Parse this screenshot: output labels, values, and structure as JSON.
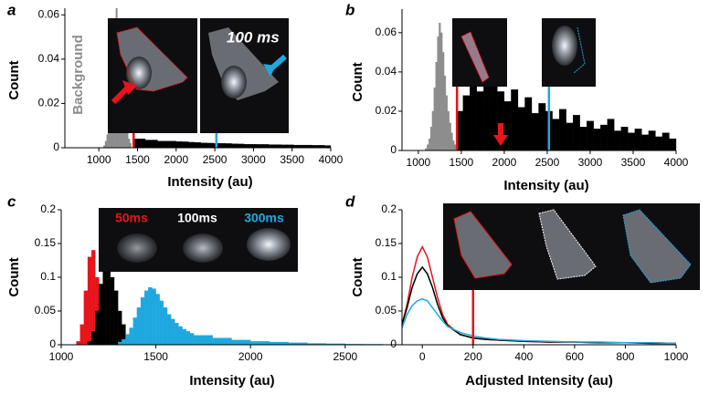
{
  "chart_data": [
    {
      "type": "histogram",
      "label": "a",
      "xlabel": "Intensity (au)",
      "ylabel": "Count",
      "xlim": [
        560,
        4000
      ],
      "ylim": [
        0,
        0.063
      ],
      "xticks": [
        1000,
        1500,
        2000,
        2500,
        3000,
        3500,
        4000
      ],
      "yticks": [
        0,
        0.02,
        0.04,
        0.06
      ],
      "annotations": [
        "Background",
        "100 ms"
      ],
      "series": [
        {
          "color": "#8c8c8c",
          "bins": [
            1060,
            1080,
            1100,
            1120,
            1140,
            1160,
            1180,
            1200,
            1220,
            1240,
            1260,
            1280,
            1300,
            1320,
            1340,
            1360,
            1380,
            1400,
            1420
          ],
          "values": [
            0.001,
            0.003,
            0.006,
            0.012,
            0.02,
            0.03,
            0.042,
            0.055,
            0.063,
            0.058,
            0.048,
            0.036,
            0.026,
            0.018,
            0.012,
            0.007,
            0.004,
            0.002
          ]
        },
        {
          "color": "#000000",
          "bins": [
            1440,
            1520,
            1600,
            1680,
            1760,
            1840,
            1920,
            2000,
            2080,
            2160,
            2240,
            2320,
            2400,
            2480,
            2560,
            2640,
            2720,
            2800,
            2880,
            2960,
            3040,
            3120,
            3200,
            3280,
            3360,
            3440,
            3520,
            3600,
            3680,
            3760,
            3840,
            3920,
            4000
          ],
          "values": [
            0.004,
            0.004,
            0.0035,
            0.0035,
            0.003,
            0.003,
            0.003,
            0.0028,
            0.0027,
            0.0025,
            0.0024,
            0.0022,
            0.0021,
            0.002,
            0.002,
            0.0019,
            0.0018,
            0.0017,
            0.0016,
            0.0016,
            0.0015,
            0.0015,
            0.0014,
            0.0014,
            0.0013,
            0.0013,
            0.0012,
            0.0012,
            0.0012,
            0.0011,
            0.0011,
            0.001
          ]
        }
      ],
      "vlines": [
        {
          "x": 1450,
          "color": "#e8141b"
        },
        {
          "x": 2520,
          "color": "#1fa8e0"
        }
      ]
    },
    {
      "type": "histogram",
      "label": "b",
      "xlabel": "Intensity (au)",
      "ylabel": "Count",
      "xlim": [
        810,
        4000
      ],
      "ylim": [
        0,
        0.072
      ],
      "xticks": [
        1000,
        1500,
        2000,
        2500,
        3000,
        3500,
        4000
      ],
      "yticks": [
        0,
        0.02,
        0.04,
        0.06
      ],
      "series": [
        {
          "color": "#8c8c8c",
          "bins": [
            1080,
            1100,
            1120,
            1140,
            1160,
            1180,
            1200,
            1220,
            1240,
            1260,
            1280,
            1300,
            1320,
            1340,
            1360,
            1380,
            1400,
            1420,
            1440
          ],
          "values": [
            0.001,
            0.003,
            0.006,
            0.012,
            0.02,
            0.032,
            0.045,
            0.058,
            0.065,
            0.06,
            0.05,
            0.038,
            0.028,
            0.02,
            0.014,
            0.009,
            0.005,
            0.003
          ]
        },
        {
          "color": "#000000",
          "bins": [
            1440,
            1520,
            1600,
            1680,
            1760,
            1840,
            1920,
            2000,
            2080,
            2160,
            2240,
            2320,
            2400,
            2480,
            2560,
            2640,
            2720,
            2800,
            2880,
            2960,
            3040,
            3120,
            3200,
            3280,
            3360,
            3440,
            3520,
            3600,
            3680,
            3760,
            3840,
            3920,
            4000
          ],
          "values": [
            0.02,
            0.028,
            0.033,
            0.03,
            0.037,
            0.034,
            0.03,
            0.025,
            0.031,
            0.022,
            0.027,
            0.019,
            0.024,
            0.02,
            0.016,
            0.021,
            0.014,
            0.018,
            0.012,
            0.015,
            0.011,
            0.013,
            0.016,
            0.01,
            0.012,
            0.009,
            0.011,
            0.008,
            0.01,
            0.007,
            0.009,
            0.006
          ]
        }
      ],
      "vlines": [
        {
          "x": 1450,
          "color": "#e8141b"
        },
        {
          "x": 2520,
          "color": "#1fa8e0"
        }
      ]
    },
    {
      "type": "histogram",
      "label": "c",
      "xlabel": "Intensity (au)",
      "ylabel": "Count",
      "xlim": [
        1000,
        2800
      ],
      "ylim": [
        0,
        0.2
      ],
      "xticks": [
        1000,
        1500,
        2000,
        2500
      ],
      "yticks": [
        0,
        0.05,
        0.1,
        0.15,
        0.2
      ],
      "series": [
        {
          "name": "50ms",
          "color": "#e8141b",
          "bins": [
            1080,
            1100,
            1120,
            1140,
            1160,
            1180,
            1200,
            1220,
            1240
          ],
          "values": [
            0.005,
            0.03,
            0.08,
            0.13,
            0.14,
            0.1,
            0.05,
            0.015
          ]
        },
        {
          "name": "100ms",
          "color": "#000000",
          "bins": [
            1140,
            1160,
            1180,
            1200,
            1220,
            1240,
            1260,
            1280,
            1300,
            1320,
            1340,
            1360,
            1380,
            1400
          ],
          "values": [
            0.005,
            0.02,
            0.05,
            0.09,
            0.11,
            0.12,
            0.1,
            0.08,
            0.05,
            0.03,
            0.015,
            0.008,
            0.003
          ]
        },
        {
          "name": "300ms",
          "color": "#1fa8e0",
          "bins": [
            1300,
            1320,
            1340,
            1360,
            1380,
            1400,
            1420,
            1440,
            1460,
            1480,
            1500,
            1520,
            1540,
            1560,
            1580,
            1600,
            1620,
            1640,
            1660,
            1680,
            1700,
            1800,
            1900,
            2000,
            2100,
            2200,
            2300,
            2400,
            2500,
            2600,
            2700,
            2800
          ],
          "values": [
            0.004,
            0.008,
            0.015,
            0.025,
            0.04,
            0.055,
            0.07,
            0.08,
            0.085,
            0.083,
            0.075,
            0.065,
            0.055,
            0.045,
            0.038,
            0.032,
            0.027,
            0.023,
            0.02,
            0.017,
            0.014,
            0.01,
            0.007,
            0.005,
            0.004,
            0.003,
            0.002,
            0.0015,
            0.001,
            0.0008,
            0.0005
          ]
        }
      ]
    },
    {
      "type": "line",
      "label": "d",
      "xlabel": "Adjusted Intensity (au)",
      "ylabel": "Count",
      "xlim": [
        -80,
        1000
      ],
      "ylim": [
        0,
        0.2
      ],
      "xticks": [
        0,
        200,
        400,
        600,
        800,
        1000
      ],
      "yticks": [
        0,
        0.05,
        0.1,
        0.15,
        0.2
      ],
      "x": [
        -80,
        -60,
        -40,
        -20,
        0,
        20,
        40,
        60,
        80,
        100,
        150,
        200,
        250,
        300,
        400,
        500,
        600,
        700,
        800,
        900,
        1000
      ],
      "series": [
        {
          "color": "#e8141b",
          "values": [
            0.03,
            0.06,
            0.1,
            0.13,
            0.145,
            0.13,
            0.1,
            0.07,
            0.045,
            0.03,
            0.015,
            0.01,
            0.008,
            0.007,
            0.005,
            0.004,
            0.004,
            0.003,
            0.003,
            0.003,
            0.002
          ]
        },
        {
          "color": "#000000",
          "values": [
            0.03,
            0.055,
            0.085,
            0.105,
            0.115,
            0.105,
            0.085,
            0.06,
            0.04,
            0.028,
            0.015,
            0.01,
            0.008,
            0.007,
            0.005,
            0.004,
            0.004,
            0.003,
            0.003,
            0.002,
            0.002
          ]
        },
        {
          "color": "#1fa8e0",
          "values": [
            0.025,
            0.045,
            0.058,
            0.065,
            0.068,
            0.065,
            0.055,
            0.045,
            0.035,
            0.027,
            0.018,
            0.013,
            0.01,
            0.008,
            0.006,
            0.005,
            0.004,
            0.004,
            0.003,
            0.003,
            0.002
          ]
        }
      ],
      "vlines": [
        {
          "x": 200,
          "color": "#e8141b"
        }
      ]
    }
  ]
}
